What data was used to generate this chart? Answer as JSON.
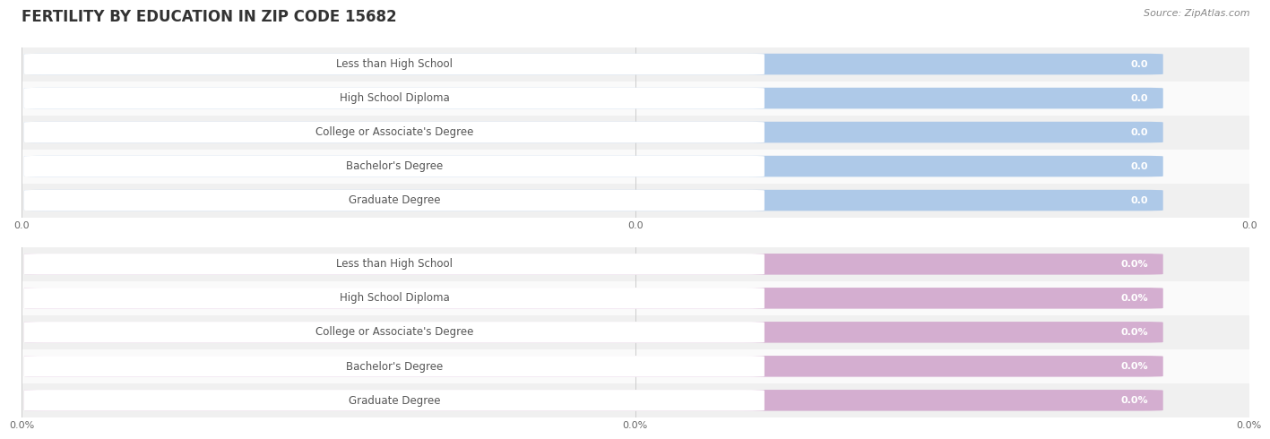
{
  "title": "FERTILITY BY EDUCATION IN ZIP CODE 15682",
  "source": "Source: ZipAtlas.com",
  "categories": [
    "Less than High School",
    "High School Diploma",
    "College or Associate's Degree",
    "Bachelor's Degree",
    "Graduate Degree"
  ],
  "top_values": [
    0.0,
    0.0,
    0.0,
    0.0,
    0.0
  ],
  "bottom_values": [
    0.0,
    0.0,
    0.0,
    0.0,
    0.0
  ],
  "top_bar_color": "#aec9e8",
  "bottom_bar_color": "#d4aed0",
  "bar_label_color": "#555555",
  "top_value_color": "#6a8fc0",
  "bottom_value_color": "#9a70a0",
  "background_color": "#ffffff",
  "row_even_color": "#f0f0f0",
  "row_odd_color": "#fafafa",
  "grid_color": "#cccccc",
  "title_color": "#333333",
  "title_fontsize": 12,
  "source_fontsize": 8,
  "label_fontsize": 8.5,
  "value_fontsize": 8,
  "tick_fontsize": 8,
  "xtick_labels_top": [
    "0.0",
    "0.0",
    "0.0"
  ],
  "xtick_labels_bottom": [
    "0.0%",
    "0.0%",
    "0.0%"
  ]
}
